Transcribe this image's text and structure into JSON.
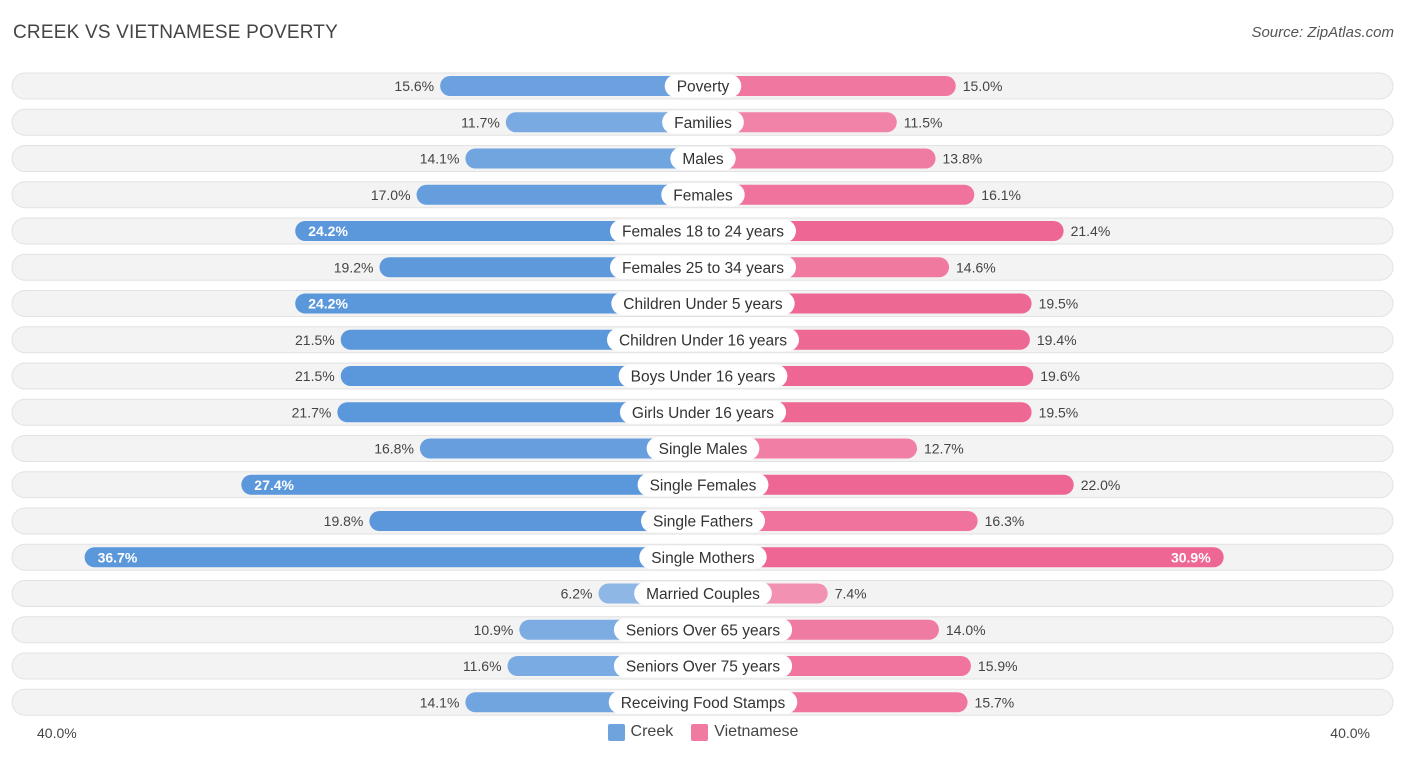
{
  "header": {
    "title": "CREEK VS VIETNAMESE POVERTY",
    "source": "Source: ZipAtlas.com"
  },
  "axis": {
    "left_label": "40.0%",
    "right_label": "40.0%"
  },
  "legend": {
    "creek": "Creek",
    "vietnamese": "Vietnamese"
  },
  "colors": {
    "creek": "#6ea3dd",
    "vietnamese": "#f07aa0",
    "row_bg": "#f1f1f1"
  },
  "chart_data": {
    "type": "bar",
    "orientation": "horizontal-diverging",
    "title": "CREEK VS VIETNAMESE POVERTY",
    "xlim": [
      -40,
      40
    ],
    "categories": [
      "Poverty",
      "Families",
      "Males",
      "Females",
      "Females 18 to 24 years",
      "Females 25 to 34 years",
      "Children Under 5 years",
      "Children Under 16 years",
      "Boys Under 16 years",
      "Girls Under 16 years",
      "Single Males",
      "Single Females",
      "Single Fathers",
      "Single Mothers",
      "Married Couples",
      "Seniors Over 65 years",
      "Seniors Over 75 years",
      "Receiving Food Stamps"
    ],
    "series": [
      {
        "name": "Creek",
        "values": [
          15.6,
          11.7,
          14.1,
          17.0,
          24.2,
          19.2,
          24.2,
          21.5,
          21.5,
          21.7,
          16.8,
          27.4,
          19.8,
          36.7,
          6.2,
          10.9,
          11.6,
          14.1
        ],
        "labels": [
          "15.6%",
          "11.7%",
          "14.1%",
          "17.0%",
          "24.2%",
          "19.2%",
          "24.2%",
          "21.5%",
          "21.5%",
          "21.7%",
          "16.8%",
          "27.4%",
          "19.8%",
          "36.7%",
          "6.2%",
          "10.9%",
          "11.6%",
          "14.1%"
        ]
      },
      {
        "name": "Vietnamese",
        "values": [
          15.0,
          11.5,
          13.8,
          16.1,
          21.4,
          14.6,
          19.5,
          19.4,
          19.6,
          19.5,
          12.7,
          22.0,
          16.3,
          30.9,
          7.4,
          14.0,
          15.9,
          15.7
        ],
        "labels": [
          "15.0%",
          "11.5%",
          "13.8%",
          "16.1%",
          "21.4%",
          "14.6%",
          "19.5%",
          "19.4%",
          "19.6%",
          "19.5%",
          "12.7%",
          "22.0%",
          "16.3%",
          "30.9%",
          "7.4%",
          "14.0%",
          "15.9%",
          "15.7%"
        ]
      }
    ]
  }
}
